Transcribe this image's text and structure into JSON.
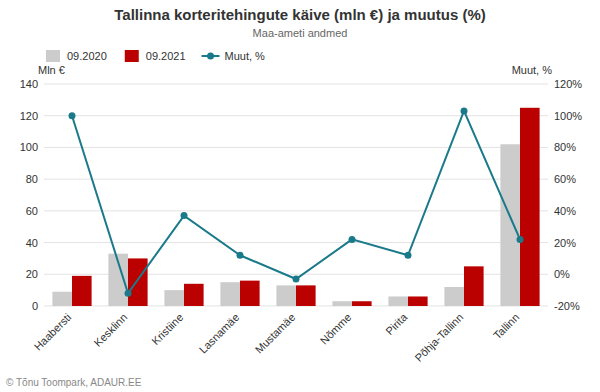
{
  "chart_data": {
    "type": "bar",
    "title": "Tallinna korteritehingute käive (mln €) ja muutus (%)",
    "subtitle": "Maa-ameti andmed",
    "ylabel": "Mln €",
    "y2label": "Muut, %",
    "annotations": [
      "© Tõnu Toompark, ADAUR.EE"
    ],
    "categories": [
      "Haabersti",
      "Kesklinn",
      "Kristiine",
      "Lasnamäe",
      "Mustamäe",
      "Nõmme",
      "Pirita",
      "Põhja-Tallinn",
      "Tallinn"
    ],
    "series": [
      {
        "name": "09.2020",
        "color": "#cccccc",
        "values": [
          9,
          33,
          10,
          15,
          13,
          3,
          6,
          12,
          102
        ]
      },
      {
        "name": "09.2021",
        "color": "#bb0000",
        "values": [
          19,
          30,
          14,
          16,
          13,
          3,
          6,
          25,
          125
        ]
      },
      {
        "name": "Muut, %",
        "type": "line",
        "axis": "y2",
        "color": "#1a7a8a",
        "marker": "circle",
        "values": [
          100,
          -12,
          37,
          12,
          -3,
          22,
          12,
          103,
          22
        ]
      }
    ],
    "ylim": [
      0,
      140
    ],
    "yticks": [
      0,
      20,
      40,
      60,
      80,
      100,
      120,
      140
    ],
    "y2lim": [
      -20,
      120
    ],
    "y2ticks": [
      {
        "value": -20,
        "label": "-20%"
      },
      {
        "value": 0,
        "label": "0%"
      },
      {
        "value": 20,
        "label": "20%"
      },
      {
        "value": 40,
        "label": "40%"
      },
      {
        "value": 60,
        "label": "60%"
      },
      {
        "value": 80,
        "label": "80%"
      },
      {
        "value": 100,
        "label": "100%"
      },
      {
        "value": 120,
        "label": "120%"
      }
    ],
    "grid": true,
    "legend": "upper left"
  }
}
